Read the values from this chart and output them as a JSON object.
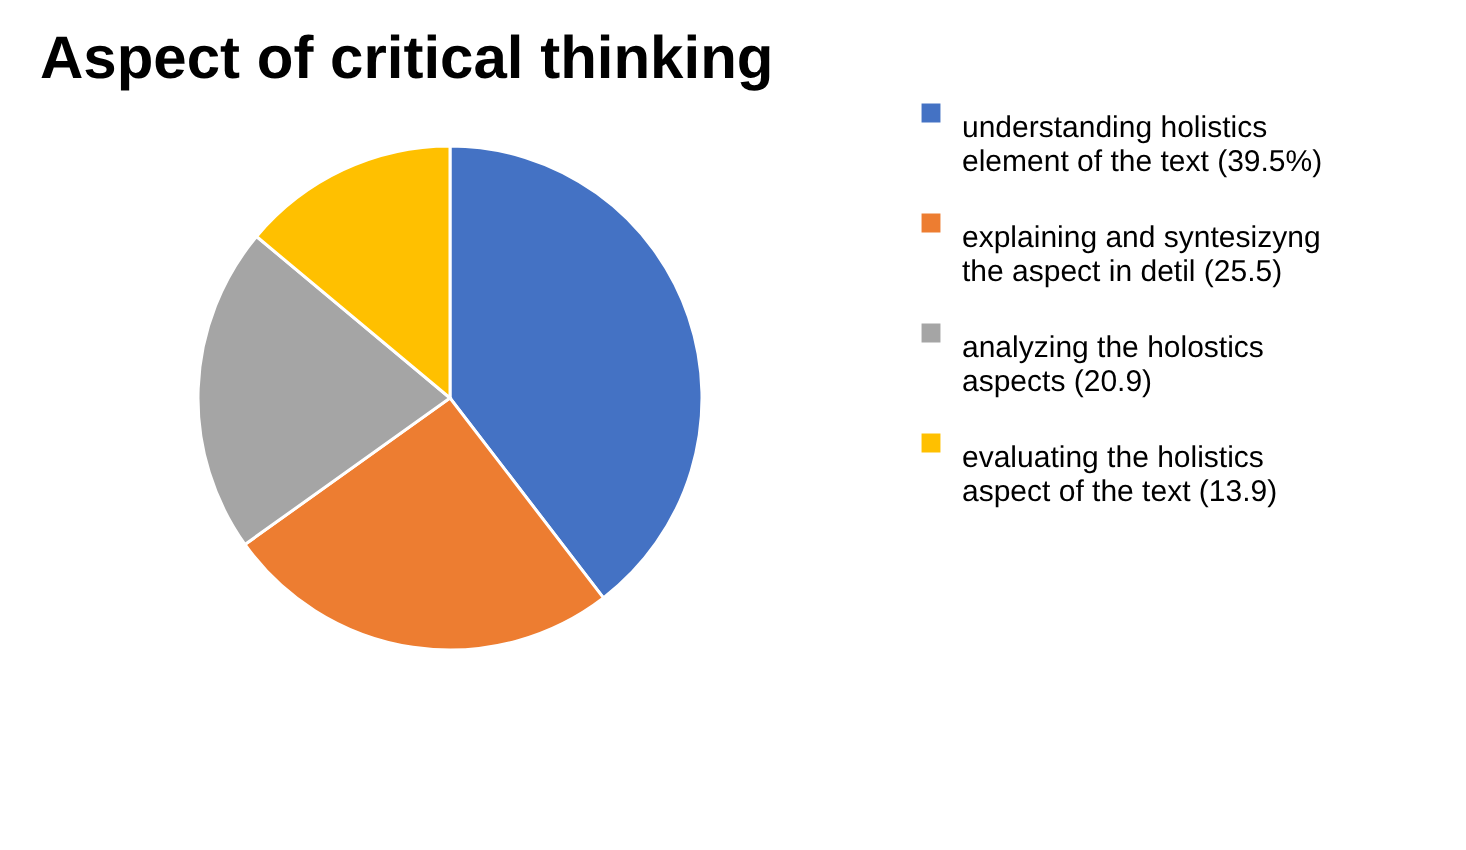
{
  "chart_data": {
    "type": "pie",
    "title": "Aspect of critical thinking",
    "categories": [
      "understanding holistics element of the text (39.5%)",
      "explaining and syntesizyng the aspect in detil (25.5)",
      "analyzing the holostics aspects (20.9)",
      "evaluating the holistics aspect of the text (13.9)"
    ],
    "values": [
      39.5,
      25.5,
      20.9,
      13.9
    ],
    "colors": [
      "#4472c4",
      "#ed7d31",
      "#a5a5a5",
      "#ffc000"
    ],
    "legend": "right"
  }
}
